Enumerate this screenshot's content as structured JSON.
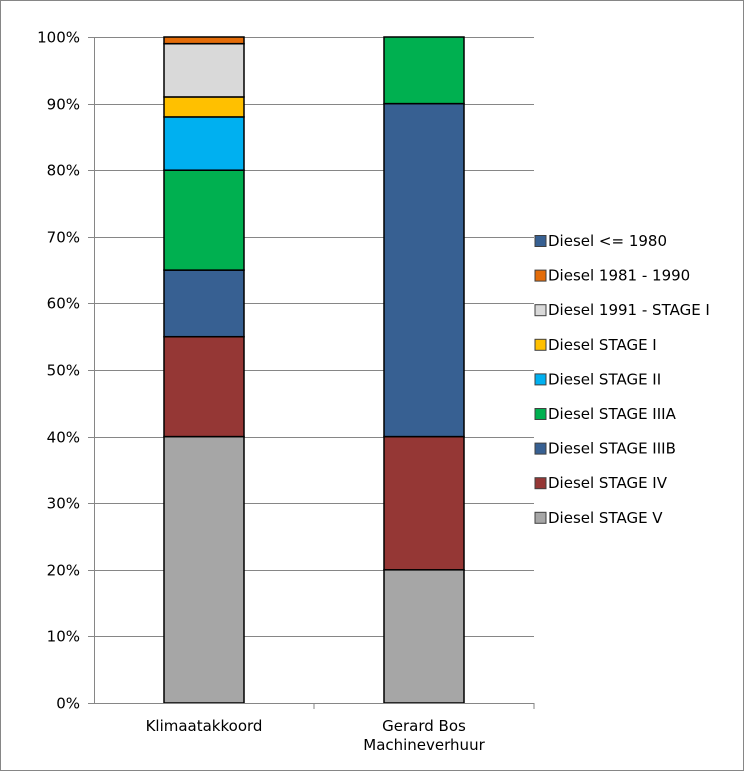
{
  "chart_data": {
    "type": "bar",
    "stacked": true,
    "percent_stacked": true,
    "categories": [
      "Klimaatakkoord",
      "Gerard Bos\nMachineverhuur"
    ],
    "ylim": [
      0,
      100
    ],
    "y_ticks": [
      "0%",
      "10%",
      "20%",
      "30%",
      "40%",
      "50%",
      "60%",
      "70%",
      "80%",
      "90%",
      "100%"
    ],
    "grid": true,
    "legend_position": "right",
    "title": "",
    "xlabel": "",
    "ylabel": "",
    "series": [
      {
        "name": "Diesel STAGE V",
        "color": "#a6a6a6",
        "values": [
          40,
          20
        ]
      },
      {
        "name": "Diesel STAGE IV",
        "color": "#953735",
        "values": [
          15,
          20
        ]
      },
      {
        "name": "Diesel STAGE IIIB",
        "color": "#376092",
        "values": [
          10,
          50
        ]
      },
      {
        "name": "Diesel STAGE IIIA",
        "color": "#00b050",
        "values": [
          15,
          10
        ]
      },
      {
        "name": "Diesel STAGE II",
        "color": "#00b0f0",
        "values": [
          8,
          0
        ]
      },
      {
        "name": "Diesel STAGE I",
        "color": "#ffc000",
        "values": [
          3,
          0
        ]
      },
      {
        "name": "Diesel 1991 - STAGE I",
        "color": "#d9d9d9",
        "values": [
          8,
          0
        ]
      },
      {
        "name": "Diesel 1981 - 1990",
        "color": "#e36c09",
        "values": [
          1,
          0
        ]
      },
      {
        "name": "Diesel <= 1980",
        "color": "#376092",
        "values": [
          0,
          0
        ]
      }
    ],
    "legend_order": [
      "Diesel <= 1980",
      "Diesel 1981 - 1990",
      "Diesel 1991 - STAGE I",
      "Diesel STAGE I",
      "Diesel STAGE II",
      "Diesel STAGE IIIA",
      "Diesel STAGE IIIB",
      "Diesel STAGE IV",
      "Diesel STAGE V"
    ]
  }
}
